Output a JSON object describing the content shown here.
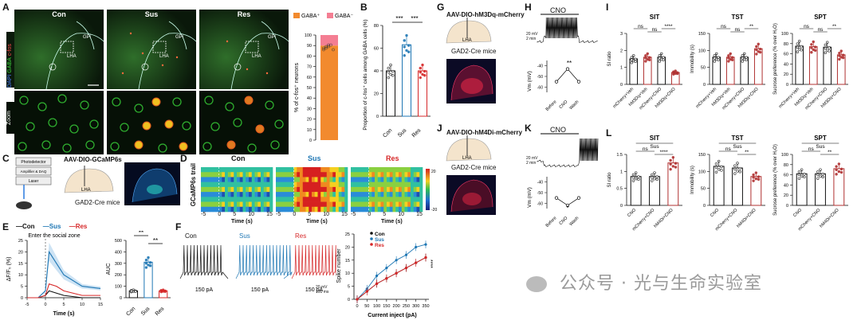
{
  "panels": {
    "a": "A",
    "b": "B",
    "c": "C",
    "d": "D",
    "e": "E",
    "f": "F",
    "g": "G",
    "h": "H",
    "i": "I",
    "j": "J",
    "k": "K",
    "l": "L"
  },
  "groups": {
    "con": "Con",
    "sus": "Sus",
    "res": "Res"
  },
  "panelA": {
    "stain_dapi": "DAPI",
    "stain_gaba": "GABA",
    "stain_cfos": "c-fos",
    "zoom_label": "Zoom",
    "region_gpi": "GPi",
    "region_lha": "LHA",
    "region_fx": "f",
    "legend_pos": "GABA⁺",
    "legend_neg": "GABA⁻",
    "ylabel": "% of c-fos⁺ neurons",
    "yticks": [
      "0",
      "10",
      "20",
      "30",
      "40",
      "50",
      "60",
      "70",
      "80",
      "90",
      "100"
    ]
  },
  "panelB": {
    "ylabel": "Proportion of c-fos⁺ cells among GABA cells (%)",
    "sig1": "***",
    "sig2": "***",
    "yticks": [
      "0",
      "20",
      "40",
      "60",
      "80"
    ]
  },
  "panelC": {
    "virus": "AAV-DIO-GCaMP6s",
    "mouse": "GAD2-Cre mice",
    "device1": "Photodetector",
    "device2": "Amplifier & DAQ",
    "device3": "Laser",
    "region": "LHA"
  },
  "panelD": {
    "ylabel": "GCaMP6s trail",
    "xlabel": "Time (s)",
    "xticks": [
      "-5",
      "0",
      "5",
      "10",
      "15"
    ],
    "colorbar_max": "20",
    "colorbar_min": "-20"
  },
  "panelE": {
    "legend_con": "—Con",
    "legend_sus": "—Sus",
    "legend_res": "—Res",
    "annotation": "Enter the social zone",
    "ylabel": "ΔF/F₀ (%)",
    "xlabel": "Time (s)",
    "xticks": [
      "-5",
      "0",
      "5",
      "10",
      "15"
    ],
    "yticks": [
      "0",
      "5",
      "10",
      "15",
      "20",
      "25"
    ],
    "auc_ylabel": "AUC",
    "auc_yticks": [
      "0",
      "100",
      "200",
      "300",
      "400",
      "500"
    ],
    "sig1": "**",
    "sig2": "**"
  },
  "panelF": {
    "current_label": "150 pA",
    "scale_mv": "20 mV",
    "scale_ms": "100 ms",
    "ylabel": "Spike number",
    "xlabel": "Current inject (pA)",
    "xticks": [
      "0",
      "50",
      "100",
      "150",
      "200",
      "250",
      "300",
      "350"
    ],
    "yticks": [
      "0",
      "5",
      "10",
      "15",
      "20",
      "25"
    ],
    "sig": "****",
    "legend_con": "Con",
    "legend_sus": "Sus",
    "legend_res": "Res"
  },
  "panelG": {
    "virus": "AAV-DIO-hM3Dq-mCherry",
    "mouse": "GAD2-Cre mice",
    "region": "LHA"
  },
  "panelH": {
    "drug": "CNO",
    "scale_mv": "20 mV",
    "scale_min": "2 min",
    "ylabel": "Vm (mV)",
    "sig": "**",
    "xticks": [
      "Before",
      "CNO",
      "Wash"
    ],
    "yticks": [
      "-40",
      "-50",
      "-60"
    ]
  },
  "panelI": {
    "titles": [
      "SIT",
      "TST",
      "SPT"
    ],
    "ylabels": [
      "SI ratio",
      "Immobility (s)",
      "Sucrose preference (% over H₂O)"
    ],
    "xcats": [
      "mCherry+Veh",
      "hM3Dq+Veh",
      "mCherry+CNO",
      "hM3Dq+CNO"
    ],
    "sig": {
      "sit": [
        "ns",
        "ns",
        "****"
      ],
      "tst": [
        "ns",
        "ns",
        "**"
      ],
      "spt": [
        "ns",
        "ns",
        "**"
      ]
    }
  },
  "panelJ": {
    "virus": "AAV-DIO-hM4Di-mCherry",
    "mouse": "GAD2-Cre mice",
    "region": "LHA"
  },
  "panelK": {
    "drug": "CNO",
    "scale_mv": "20 mV",
    "scale_min": "2 min",
    "ylabel": "Vm (mV)",
    "sig": "*",
    "xticks": [
      "Before",
      "CNO",
      "Wash"
    ],
    "yticks": [
      "-40",
      "-50",
      "-60"
    ]
  },
  "panelL": {
    "titles": [
      "SIT",
      "TST",
      "SPT"
    ],
    "group_label": "Sus",
    "xcats": [
      "CNO",
      "mCherry+CNO",
      "hM4Di+CNO"
    ],
    "sig": {
      "sit": [
        "ns",
        "****"
      ],
      "tst": [
        "ns",
        "**"
      ],
      "spt": [
        "ns",
        "**"
      ]
    }
  },
  "watermark": "公众号 · 光与生命实验室",
  "colors": {
    "con": "#111111",
    "sus": "#1f77b4",
    "res": "#d62728",
    "gaba_pos": "#f28a2e",
    "gaba_neg": "#f47e93"
  },
  "chart_data": [
    {
      "type": "bar",
      "id": "A-stack",
      "categories": [
        "GABA+",
        "GABA-"
      ],
      "values": [
        90,
        10
      ],
      "ylabel": "% of c-fos+ neurons",
      "ylim": [
        0,
        100
      ]
    },
    {
      "type": "bar",
      "id": "B",
      "categories": [
        "Con",
        "Sus",
        "Res"
      ],
      "values": [
        40,
        63,
        40
      ],
      "ylabel": "Proportion of c-fos+ cells among GABA cells (%)",
      "ylim": [
        0,
        80
      ]
    },
    {
      "type": "line",
      "id": "E-trace",
      "x": [
        -5,
        -2,
        0,
        1,
        3,
        5,
        10,
        15
      ],
      "series": [
        {
          "name": "Con",
          "values": [
            0,
            0,
            1,
            3,
            2,
            1,
            0,
            0
          ]
        },
        {
          "name": "Sus",
          "values": [
            0,
            0,
            3,
            20,
            15,
            10,
            5,
            4
          ]
        },
        {
          "name": "Res",
          "values": [
            0,
            0,
            1,
            6,
            5,
            3,
            1,
            1
          ]
        }
      ],
      "xlabel": "Time (s)",
      "ylabel": "dF/F0 (%)",
      "ylim": [
        0,
        25
      ]
    },
    {
      "type": "bar",
      "id": "E-AUC",
      "categories": [
        "Con",
        "Sus",
        "Res"
      ],
      "values": [
        60,
        310,
        60
      ],
      "ylabel": "AUC",
      "ylim": [
        0,
        500
      ]
    },
    {
      "type": "line",
      "id": "F",
      "x": [
        0,
        50,
        100,
        150,
        200,
        250,
        300,
        350
      ],
      "series": [
        {
          "name": "Con",
          "values": [
            0,
            3,
            6,
            8,
            10,
            12,
            14,
            16
          ]
        },
        {
          "name": "Sus",
          "values": [
            0,
            4,
            9,
            12,
            15,
            17,
            20,
            21
          ]
        },
        {
          "name": "Res",
          "values": [
            0,
            3,
            6,
            8,
            10,
            12,
            14,
            16
          ]
        }
      ],
      "xlabel": "Current inject (pA)",
      "ylabel": "Spike number",
      "ylim": [
        0,
        25
      ]
    },
    {
      "type": "line",
      "id": "H-Vm",
      "categories": [
        "Before",
        "CNO",
        "Wash"
      ],
      "values": [
        -55,
        -43,
        -55
      ],
      "ylim": [
        -65,
        -35
      ]
    },
    {
      "type": "line",
      "id": "K-Vm",
      "categories": [
        "Before",
        "CNO",
        "Wash"
      ],
      "values": [
        -55,
        -62,
        -55
      ],
      "ylim": [
        -65,
        -35
      ]
    },
    {
      "type": "bar",
      "id": "I-SIT",
      "categories": [
        "mCherry+Veh",
        "hM3Dq+Veh",
        "mCherry+CNO",
        "hM3Dq+CNO"
      ],
      "values": [
        1.5,
        1.6,
        1.6,
        0.7
      ],
      "ylim": [
        0,
        3
      ]
    },
    {
      "type": "bar",
      "id": "I-TST",
      "categories": [
        "mCherry+Veh",
        "hM3Dq+Veh",
        "mCherry+CNO",
        "hM3Dq+CNO"
      ],
      "values": [
        80,
        80,
        80,
        105
      ],
      "ylim": [
        0,
        150
      ]
    },
    {
      "type": "bar",
      "id": "I-SPT",
      "categories": [
        "mCherry+Veh",
        "hM3Dq+Veh",
        "mCherry+CNO",
        "hM3Dq+CNO"
      ],
      "values": [
        75,
        74,
        73,
        58
      ],
      "ylim": [
        0,
        100
      ]
    },
    {
      "type": "bar",
      "id": "L-SIT",
      "categories": [
        "CNO",
        "mCherry+CNO",
        "hM4Di+CNO"
      ],
      "values": [
        0.85,
        0.85,
        1.25
      ],
      "ylim": [
        0,
        1.5
      ]
    },
    {
      "type": "bar",
      "id": "L-TST",
      "categories": [
        "CNO",
        "mCherry+CNO",
        "hM4Di+CNO"
      ],
      "values": [
        115,
        110,
        85
      ],
      "ylim": [
        0,
        150
      ]
    },
    {
      "type": "bar",
      "id": "L-SPT",
      "categories": [
        "CNO",
        "mCherry+CNO",
        "hM4Di+CNO"
      ],
      "values": [
        62,
        62,
        72
      ],
      "ylim": [
        0,
        100
      ]
    }
  ]
}
